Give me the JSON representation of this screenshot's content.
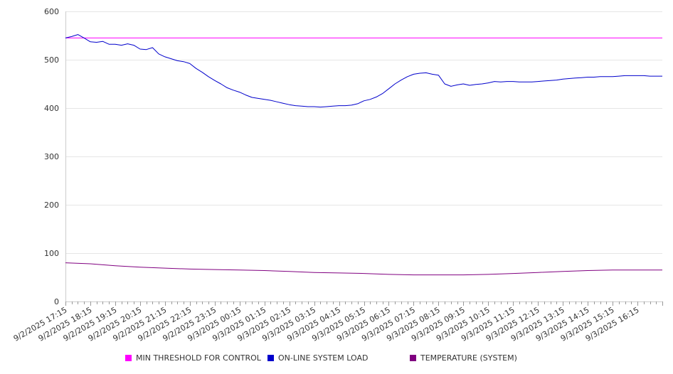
{
  "chart_data": {
    "type": "line",
    "ylim": [
      0,
      600
    ],
    "yticks": [
      0,
      100,
      200,
      300,
      400,
      500,
      600
    ],
    "xlim": [
      "9/2/2025 17:15",
      "9/3/2025 17:15"
    ],
    "xtick_labels": [
      "9/2/2025 17:15",
      "9/2/2025 18:15",
      "9/2/2025 19:15",
      "9/2/2025 20:15",
      "9/2/2025 21:15",
      "9/2/2025 22:15",
      "9/2/2025 23:15",
      "9/3/2025 00:15",
      "9/3/2025 01:15",
      "9/3/2025 02:15",
      "9/3/2025 03:15",
      "9/3/2025 04:15",
      "9/3/2025 05:15",
      "9/3/2025 06:15",
      "9/3/2025 07:15",
      "9/3/2025 08:15",
      "9/3/2025 09:15",
      "9/3/2025 10:15",
      "9/3/2025 11:15",
      "9/3/2025 12:15",
      "9/3/2025 13:15",
      "9/3/2025 14:15",
      "9/3/2025 15:15",
      "9/3/2025 16:15"
    ],
    "grid": true,
    "legend_position": "bottom",
    "series": [
      {
        "name": "MIN THRESHOLD FOR CONTROL",
        "color": "#ff00ff",
        "points": [
          [
            "9/2/2025 17:15",
            545
          ],
          [
            "9/3/2025 17:15",
            545
          ]
        ]
      },
      {
        "name": "ON-LINE SYSTEM LOAD",
        "color": "#0000cc",
        "points": [
          [
            "9/2/2025 17:15",
            545
          ],
          [
            "9/2/2025 17:30",
            548
          ],
          [
            "9/2/2025 17:45",
            552
          ],
          [
            "9/2/2025 18:00",
            545
          ],
          [
            "9/2/2025 18:15",
            537
          ],
          [
            "9/2/2025 18:30",
            536
          ],
          [
            "9/2/2025 18:45",
            538
          ],
          [
            "9/2/2025 19:00",
            532
          ],
          [
            "9/2/2025 19:15",
            532
          ],
          [
            "9/2/2025 19:30",
            530
          ],
          [
            "9/2/2025 19:45",
            533
          ],
          [
            "9/2/2025 20:00",
            530
          ],
          [
            "9/2/2025 20:15",
            522
          ],
          [
            "9/2/2025 20:30",
            521
          ],
          [
            "9/2/2025 20:45",
            525
          ],
          [
            "9/2/2025 21:00",
            512
          ],
          [
            "9/2/2025 21:15",
            506
          ],
          [
            "9/2/2025 21:30",
            502
          ],
          [
            "9/2/2025 21:45",
            498
          ],
          [
            "9/2/2025 22:00",
            496
          ],
          [
            "9/2/2025 22:15",
            492
          ],
          [
            "9/2/2025 22:30",
            482
          ],
          [
            "9/2/2025 22:45",
            474
          ],
          [
            "9/2/2025 23:00",
            465
          ],
          [
            "9/2/2025 23:15",
            457
          ],
          [
            "9/2/2025 23:30",
            450
          ],
          [
            "9/2/2025 23:45",
            442
          ],
          [
            "9/3/2025 00:00",
            437
          ],
          [
            "9/3/2025 00:15",
            433
          ],
          [
            "9/3/2025 00:30",
            427
          ],
          [
            "9/3/2025 00:45",
            422
          ],
          [
            "9/3/2025 01:00",
            420
          ],
          [
            "9/3/2025 01:15",
            418
          ],
          [
            "9/3/2025 01:30",
            416
          ],
          [
            "9/3/2025 01:45",
            413
          ],
          [
            "9/3/2025 02:00",
            410
          ],
          [
            "9/3/2025 02:15",
            407
          ],
          [
            "9/3/2025 02:30",
            405
          ],
          [
            "9/3/2025 02:45",
            404
          ],
          [
            "9/3/2025 03:00",
            403
          ],
          [
            "9/3/2025 03:15",
            403
          ],
          [
            "9/3/2025 03:30",
            402
          ],
          [
            "9/3/2025 03:45",
            403
          ],
          [
            "9/3/2025 04:00",
            404
          ],
          [
            "9/3/2025 04:15",
            405
          ],
          [
            "9/3/2025 04:30",
            405
          ],
          [
            "9/3/2025 04:45",
            406
          ],
          [
            "9/3/2025 05:00",
            409
          ],
          [
            "9/3/2025 05:15",
            415
          ],
          [
            "9/3/2025 05:30",
            418
          ],
          [
            "9/3/2025 05:45",
            423
          ],
          [
            "9/3/2025 06:00",
            430
          ],
          [
            "9/3/2025 06:15",
            440
          ],
          [
            "9/3/2025 06:30",
            450
          ],
          [
            "9/3/2025 06:45",
            458
          ],
          [
            "9/3/2025 07:00",
            465
          ],
          [
            "9/3/2025 07:15",
            470
          ],
          [
            "9/3/2025 07:30",
            472
          ],
          [
            "9/3/2025 07:45",
            473
          ],
          [
            "9/3/2025 08:00",
            470
          ],
          [
            "9/3/2025 08:15",
            468
          ],
          [
            "9/3/2025 08:30",
            450
          ],
          [
            "9/3/2025 08:45",
            445
          ],
          [
            "9/3/2025 09:00",
            448
          ],
          [
            "9/3/2025 09:15",
            450
          ],
          [
            "9/3/2025 09:30",
            447
          ],
          [
            "9/3/2025 09:45",
            449
          ],
          [
            "9/3/2025 10:00",
            450
          ],
          [
            "9/3/2025 10:15",
            452
          ],
          [
            "9/3/2025 10:30",
            455
          ],
          [
            "9/3/2025 10:45",
            454
          ],
          [
            "9/3/2025 11:00",
            455
          ],
          [
            "9/3/2025 11:15",
            455
          ],
          [
            "9/3/2025 11:30",
            454
          ],
          [
            "9/3/2025 11:45",
            454
          ],
          [
            "9/3/2025 12:00",
            454
          ],
          [
            "9/3/2025 12:15",
            455
          ],
          [
            "9/3/2025 12:30",
            456
          ],
          [
            "9/3/2025 12:45",
            457
          ],
          [
            "9/3/2025 13:00",
            458
          ],
          [
            "9/3/2025 13:15",
            460
          ],
          [
            "9/3/2025 13:30",
            461
          ],
          [
            "9/3/2025 13:45",
            462
          ],
          [
            "9/3/2025 14:00",
            463
          ],
          [
            "9/3/2025 14:15",
            464
          ],
          [
            "9/3/2025 14:30",
            464
          ],
          [
            "9/3/2025 14:45",
            465
          ],
          [
            "9/3/2025 15:00",
            465
          ],
          [
            "9/3/2025 15:15",
            465
          ],
          [
            "9/3/2025 15:30",
            466
          ],
          [
            "9/3/2025 15:45",
            467
          ],
          [
            "9/3/2025 16:00",
            467
          ],
          [
            "9/3/2025 16:15",
            467
          ],
          [
            "9/3/2025 16:30",
            467
          ],
          [
            "9/3/2025 16:45",
            466
          ],
          [
            "9/3/2025 17:00",
            466
          ],
          [
            "9/3/2025 17:15",
            466
          ]
        ]
      },
      {
        "name": "TEMPERATURE (SYSTEM)",
        "color": "#800080",
        "points": [
          [
            "9/2/2025 17:15",
            80
          ],
          [
            "9/2/2025 18:15",
            78
          ],
          [
            "9/2/2025 19:15",
            74
          ],
          [
            "9/2/2025 20:15",
            71
          ],
          [
            "9/2/2025 21:15",
            69
          ],
          [
            "9/2/2025 22:15",
            67
          ],
          [
            "9/2/2025 23:15",
            66
          ],
          [
            "9/3/2025 00:15",
            65
          ],
          [
            "9/3/2025 01:15",
            64
          ],
          [
            "9/3/2025 02:15",
            62
          ],
          [
            "9/3/2025 03:15",
            60
          ],
          [
            "9/3/2025 04:15",
            59
          ],
          [
            "9/3/2025 05:15",
            58
          ],
          [
            "9/3/2025 06:15",
            56
          ],
          [
            "9/3/2025 07:15",
            55
          ],
          [
            "9/3/2025 08:15",
            55
          ],
          [
            "9/3/2025 09:15",
            55
          ],
          [
            "9/3/2025 10:15",
            56
          ],
          [
            "9/3/2025 11:15",
            58
          ],
          [
            "9/3/2025 12:15",
            60
          ],
          [
            "9/3/2025 13:15",
            62
          ],
          [
            "9/3/2025 14:15",
            64
          ],
          [
            "9/3/2025 15:15",
            65
          ],
          [
            "9/3/2025 16:15",
            65
          ],
          [
            "9/3/2025 17:15",
            65
          ]
        ]
      }
    ]
  }
}
